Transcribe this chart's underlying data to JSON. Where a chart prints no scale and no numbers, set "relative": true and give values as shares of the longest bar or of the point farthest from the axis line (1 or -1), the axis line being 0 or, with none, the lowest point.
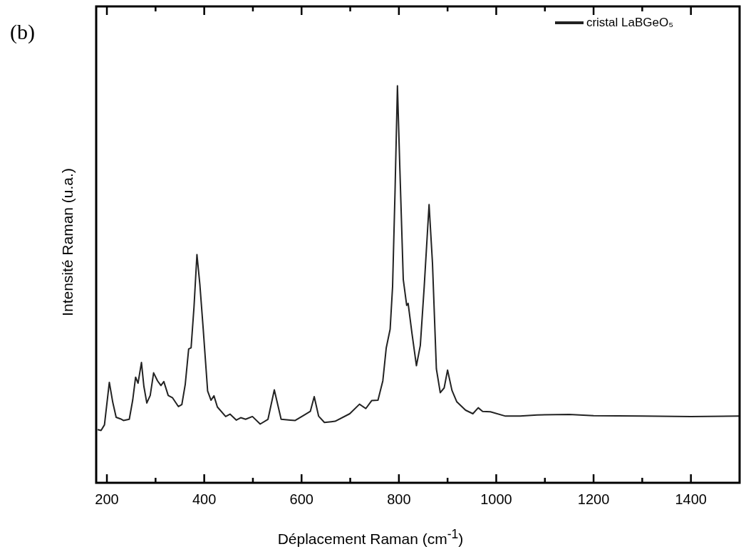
{
  "chart_data": {
    "type": "line",
    "relative": true,
    "xlabel": "Déplacement Raman (cm$^{-1}$)",
    "ylabel": "Intensité Raman (u.a.)",
    "annotations": [
      "(b)"
    ],
    "legend": "top right",
    "grid": false,
    "marker": "none",
    "line_style": "solid",
    "xlim": [
      178,
      1500
    ],
    "xticks": [
      200,
      {
        "value": 300,
        "label": null
      },
      400,
      {
        "value": 500,
        "label": null
      },
      600,
      {
        "value": 700,
        "label": null
      },
      800,
      {
        "value": 900,
        "label": null
      },
      1000,
      {
        "value": 1100,
        "label": null
      },
      1200,
      {
        "value": 1300,
        "label": null
      },
      1400
    ],
    "series": [
      {
        "name": "cristal LaBGeO₅",
        "color": "#222222",
        "x": [
          181,
          188,
          195,
          205,
          212,
          219,
          228,
          234,
          246,
          253,
          259,
          264,
          271,
          276,
          282,
          289,
          296,
          304,
          311,
          317,
          326,
          335,
          347,
          354,
          361,
          368,
          373,
          379,
          385,
          391,
          398,
          407,
          414,
          420,
          427,
          444,
          453,
          466,
          475,
          485,
          499,
          515,
          531,
          544,
          558,
          577,
          587,
          606,
          618,
          626,
          635,
          647,
          661,
          669,
          699,
          719,
          732,
          744,
          757,
          767,
          774,
          782,
          787,
          792,
          797,
          802,
          809,
          816,
          819,
          827,
          836,
          844,
          852,
          862,
          869,
          877,
          885,
          893,
          900,
          909,
          919,
          937,
          952,
          963,
          972,
          988,
          1019,
          1049,
          1084,
          1150,
          1200,
          1300,
          1400,
          1500
        ],
        "values": [
          0.134,
          0.132,
          0.146,
          0.253,
          0.203,
          0.165,
          0.161,
          0.157,
          0.16,
          0.208,
          0.266,
          0.251,
          0.303,
          0.243,
          0.201,
          0.22,
          0.277,
          0.257,
          0.245,
          0.255,
          0.22,
          0.214,
          0.192,
          0.197,
          0.248,
          0.337,
          0.34,
          0.443,
          0.575,
          0.5,
          0.386,
          0.231,
          0.208,
          0.219,
          0.191,
          0.167,
          0.173,
          0.158,
          0.164,
          0.16,
          0.167,
          0.148,
          0.16,
          0.234,
          0.16,
          0.158,
          0.157,
          0.171,
          0.18,
          0.217,
          0.168,
          0.152,
          0.154,
          0.155,
          0.174,
          0.198,
          0.187,
          0.207,
          0.208,
          0.257,
          0.34,
          0.387,
          0.494,
          0.731,
          1.0,
          0.79,
          0.512,
          0.447,
          0.452,
          0.375,
          0.295,
          0.346,
          0.494,
          0.701,
          0.553,
          0.287,
          0.227,
          0.239,
          0.284,
          0.233,
          0.204,
          0.183,
          0.174,
          0.189,
          0.18,
          0.179,
          0.168,
          0.168,
          0.171,
          0.172,
          0.169,
          0.168,
          0.167,
          0.168
        ]
      }
    ]
  }
}
